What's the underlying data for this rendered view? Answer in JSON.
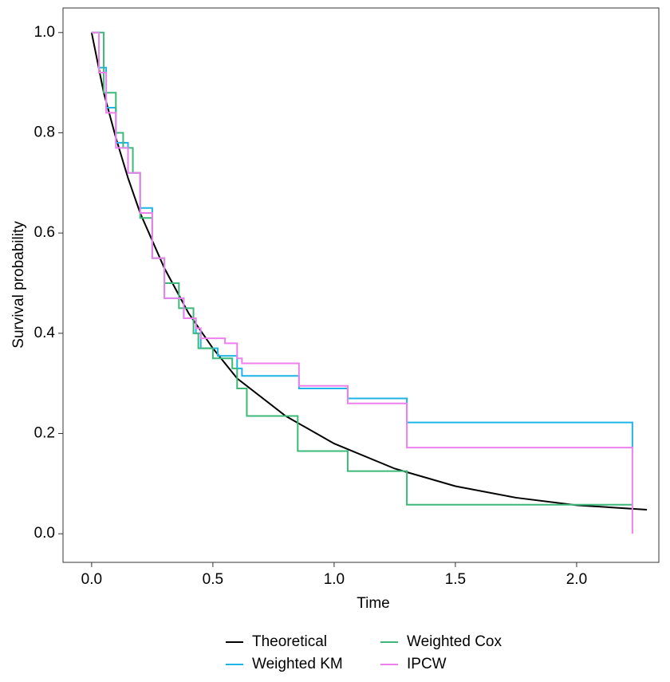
{
  "chart_data": {
    "type": "line",
    "x_label": "Time",
    "y_label": "Survival probability",
    "xlim": [
      -0.118,
      2.339
    ],
    "ylim": [
      -0.057,
      1.049
    ],
    "xticks": [
      {
        "value": 0,
        "label": "0.0"
      },
      {
        "value": 0.5,
        "label": "0.5"
      },
      {
        "value": 1,
        "label": "1.0"
      },
      {
        "value": 1.5,
        "label": "1.5"
      },
      {
        "value": 2,
        "label": "2.0"
      }
    ],
    "yticks": [
      {
        "value": 0,
        "label": "0.0"
      },
      {
        "value": 0.2,
        "label": "0.2"
      },
      {
        "value": 0.4,
        "label": "0.4"
      },
      {
        "value": 0.6,
        "label": "0.6"
      },
      {
        "value": 0.8,
        "label": "0.8"
      },
      {
        "value": 1,
        "label": "1.0"
      }
    ],
    "grid": false,
    "legend": "bottom",
    "series": [
      {
        "name": "Theoretical",
        "color": "#000000",
        "step": false,
        "x": [
          0,
          0.05,
          0.1,
          0.15,
          0.2,
          0.3,
          0.4,
          0.5,
          0.6,
          0.8,
          1.0,
          1.25,
          1.5,
          1.75,
          2.0,
          2.29
        ],
        "values": [
          1.0,
          0.88,
          0.79,
          0.71,
          0.64,
          0.53,
          0.44,
          0.37,
          0.31,
          0.235,
          0.18,
          0.13,
          0.095,
          0.072,
          0.057,
          0.048
        ]
      },
      {
        "name": "Weighted KM",
        "color": "#1fb4e6",
        "step": true,
        "x": [
          0,
          0.03,
          0.06,
          0.1,
          0.15,
          0.2,
          0.25,
          0.3,
          0.38,
          0.43,
          0.45,
          0.52,
          0.6,
          0.62,
          0.855,
          1.056,
          1.3,
          2.23
        ],
        "values": [
          1.0,
          0.93,
          0.85,
          0.78,
          0.72,
          0.65,
          0.55,
          0.47,
          0.43,
          0.4,
          0.37,
          0.355,
          0.33,
          0.315,
          0.29,
          0.27,
          0.222,
          0.172
        ]
      },
      {
        "name": "Weighted Cox",
        "color": "#3cb878",
        "step": true,
        "x": [
          0,
          0.05,
          0.1,
          0.13,
          0.17,
          0.2,
          0.25,
          0.3,
          0.36,
          0.42,
          0.44,
          0.5,
          0.58,
          0.6,
          0.64,
          0.85,
          1.056,
          1.3,
          2.23
        ],
        "values": [
          1.0,
          0.88,
          0.8,
          0.77,
          0.72,
          0.63,
          0.55,
          0.5,
          0.45,
          0.4,
          0.37,
          0.35,
          0.33,
          0.29,
          0.235,
          0.165,
          0.125,
          0.058,
          0.058
        ]
      },
      {
        "name": "IPCW",
        "color": "#ee80ee",
        "step": true,
        "x": [
          0,
          0.03,
          0.06,
          0.1,
          0.15,
          0.2,
          0.25,
          0.3,
          0.38,
          0.43,
          0.45,
          0.55,
          0.6,
          0.62,
          0.855,
          1.056,
          1.3,
          2.23
        ],
        "values": [
          1.0,
          0.92,
          0.84,
          0.77,
          0.72,
          0.64,
          0.55,
          0.47,
          0.43,
          0.41,
          0.39,
          0.38,
          0.35,
          0.34,
          0.295,
          0.26,
          0.172,
          0.0
        ]
      }
    ]
  }
}
